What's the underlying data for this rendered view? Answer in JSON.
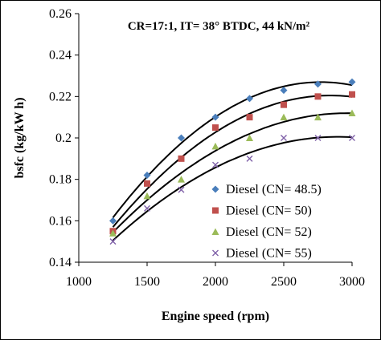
{
  "chart_data": {
    "type": "scatter",
    "title": "CR=17:1, IT= 38° BTDC, 44 kN/m²",
    "xlabel": "Engine speed (rpm)",
    "ylabel": "bsfc (kg/kW h)",
    "xlim": [
      1000,
      3000
    ],
    "ylim": [
      0.14,
      0.26
    ],
    "xticks": [
      1000,
      1500,
      2000,
      2500,
      3000
    ],
    "yticks": [
      0.14,
      0.16,
      0.18,
      0.2,
      0.22,
      0.24,
      0.26
    ],
    "ytick_labels": [
      "0.14",
      "0.16",
      "0.18",
      "0.2",
      "0.22",
      "0.24",
      "0.26"
    ],
    "grid": false,
    "trendline": "polynomial",
    "legend_position": "bottom-right",
    "x": [
      1250,
      1500,
      1750,
      2000,
      2250,
      2500,
      2750,
      3000
    ],
    "series": [
      {
        "name": "Diesel  (CN= 48.5)",
        "marker": "diamond",
        "color": "#4a7ebb",
        "values": [
          0.16,
          0.182,
          0.2,
          0.21,
          0.219,
          0.223,
          0.226,
          0.227
        ]
      },
      {
        "name": "Diesel  (CN= 50)",
        "marker": "square",
        "color": "#c0504d",
        "values": [
          0.155,
          0.178,
          0.19,
          0.205,
          0.21,
          0.216,
          0.22,
          0.221
        ]
      },
      {
        "name": "Diesel  (CN= 52)",
        "marker": "triangle",
        "color": "#9bbb59",
        "values": [
          0.154,
          0.172,
          0.18,
          0.196,
          0.2,
          0.21,
          0.21,
          0.212
        ]
      },
      {
        "name": "Diesel  (CN= 55)",
        "marker": "x",
        "color": "#7f60a8",
        "values": [
          0.15,
          0.166,
          0.175,
          0.187,
          0.19,
          0.2,
          0.2,
          0.2
        ]
      }
    ]
  }
}
